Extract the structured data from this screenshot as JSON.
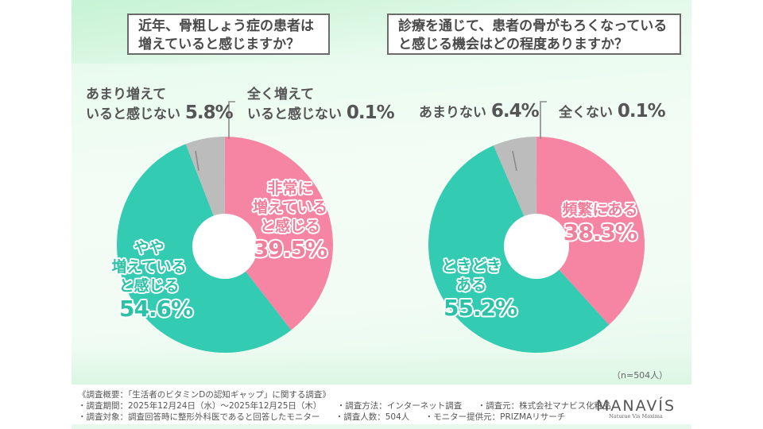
{
  "colors": {
    "pink": "#f585a2",
    "teal": "#33cbb2",
    "gray": "#bcbcbc",
    "text": "#555555"
  },
  "chart_data": [
    {
      "type": "pie",
      "donut": true,
      "title": "近年、骨粗しょう症の患者は増えていると感じますか？",
      "title_lines": [
        "近年、骨粗しょう症の患者は",
        "増えていると感じますか？"
      ],
      "slices": [
        {
          "label": "非常に増えていると感じる",
          "label_lines": [
            "非常に",
            "増えている",
            "と感じる"
          ],
          "value": 39.5,
          "display": "39.5%",
          "color": "#f585a2"
        },
        {
          "label": "やや増えていると感じる",
          "label_lines": [
            "やや",
            "増えている",
            "と感じる"
          ],
          "value": 54.6,
          "display": "54.6%",
          "color": "#33cbb2"
        },
        {
          "label": "あまり増えていると感じない",
          "label_lines": [
            "あまり増えて",
            "いると感じない"
          ],
          "value": 5.8,
          "display": "5.8%",
          "color": "#bcbcbc"
        },
        {
          "label": "全く増えていると感じない",
          "label_lines": [
            "全く増えて",
            "いると感じない"
          ],
          "value": 0.1,
          "display": "0.1%",
          "color": "#bcbcbc"
        }
      ]
    },
    {
      "type": "pie",
      "donut": true,
      "title": "診療を通じて、患者の骨がもろくなっていると感じる機会はどの程度ありますか？",
      "title_lines": [
        "診療を通じて、患者の骨がもろくなっている",
        "と感じる機会はどの程度ありますか？"
      ],
      "slices": [
        {
          "label": "頻繁にある",
          "label_lines": [
            "頻繁にある"
          ],
          "value": 38.3,
          "display": "38.3%",
          "color": "#f585a2"
        },
        {
          "label": "ときどきある",
          "label_lines": [
            "ときどき",
            "ある"
          ],
          "value": 55.2,
          "display": "55.2%",
          "color": "#33cbb2"
        },
        {
          "label": "あまりない",
          "label_lines": [
            "あまりない"
          ],
          "value": 6.4,
          "display": "6.4%",
          "color": "#bcbcbc"
        },
        {
          "label": "全くない",
          "label_lines": [
            "全くない"
          ],
          "value": 0.1,
          "display": "0.1%",
          "color": "#bcbcbc"
        }
      ]
    }
  ],
  "sample_size": "（n=504人）",
  "footer": {
    "heading": "《調査概要：「生活者のビタミンDの認知ギャップ」に関する調査》",
    "row1": [
      "・調査期間：2025年12月24日（水）～2025年12月25日（木）",
      "・調査方法：インターネット調査",
      "・調査元：株式会社マナビス化粧品"
    ],
    "row2": [
      "・調査対象：調査回答時に整形外科医であると回答したモニター",
      "・調査人数：504人",
      "・モニター提供元：PRIZMAリサーチ"
    ]
  },
  "logo": {
    "name": "MANAVÍS",
    "tagline": "Naturae Vis Maxima"
  }
}
